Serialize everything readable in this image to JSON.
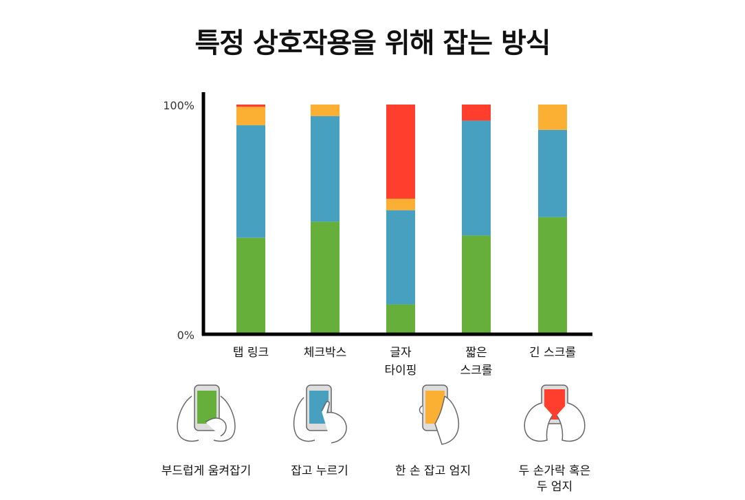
{
  "title": "특정 상호작용을 위해 잡는 방식",
  "chart_data": {
    "type": "bar",
    "stacked": true,
    "categories": [
      [
        "탭 링크"
      ],
      [
        "체크박스"
      ],
      [
        "글자",
        "타이핑"
      ],
      [
        "짧은",
        "스크롤"
      ],
      [
        "긴 스크롤"
      ]
    ],
    "ylim": [
      0,
      100
    ],
    "yticks": [
      "0%",
      "100%"
    ],
    "series": [
      {
        "color": "#66AF3B",
        "values": [
          42,
          49,
          13,
          43,
          51
        ]
      },
      {
        "color": "#48A0C0",
        "values": [
          49,
          46,
          41,
          50,
          38
        ]
      },
      {
        "color": "#FBB034",
        "values": [
          8,
          5,
          5,
          0,
          11
        ]
      },
      {
        "color": "#FF3E2E",
        "values": [
          1,
          0,
          41,
          7,
          0
        ]
      }
    ]
  },
  "legend": [
    {
      "label": "부드럽게 움켜잡기",
      "color": "#66AF3B"
    },
    {
      "label": "잡고 누르기",
      "color": "#48A0C0"
    },
    {
      "label": "한 손 잡고 엄지",
      "color": "#FBB034"
    },
    {
      "label": "두 손가락 혹은\n두 엄지",
      "color": "#FF3E2E"
    }
  ]
}
